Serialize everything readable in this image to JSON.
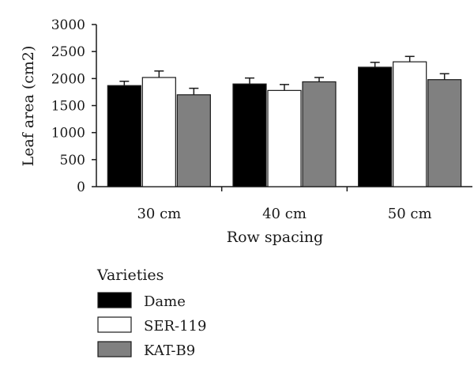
{
  "chart_data": {
    "type": "bar",
    "title": "",
    "xlabel": "Row spacing",
    "ylabel": "Leaf area (cm2)",
    "ylim": [
      0,
      3000
    ],
    "yticks": [
      0,
      500,
      1000,
      1500,
      2000,
      2500,
      3000
    ],
    "categories": [
      "30 cm",
      "40 cm",
      "50 cm"
    ],
    "series": [
      {
        "name": "Dame",
        "values": [
          1870,
          1900,
          2210
        ],
        "errors": [
          80,
          110,
          90
        ],
        "color": "#000000"
      },
      {
        "name": "SER-119",
        "values": [
          2020,
          1780,
          2310
        ],
        "errors": [
          120,
          110,
          100
        ],
        "color": "#ffffff"
      },
      {
        "name": "KAT-B9",
        "values": [
          1700,
          1940,
          1980
        ],
        "errors": [
          120,
          80,
          110
        ],
        "color": "#808080"
      }
    ],
    "legend": {
      "title": "Varieties",
      "placement": "bottom-left"
    },
    "grid": false
  }
}
